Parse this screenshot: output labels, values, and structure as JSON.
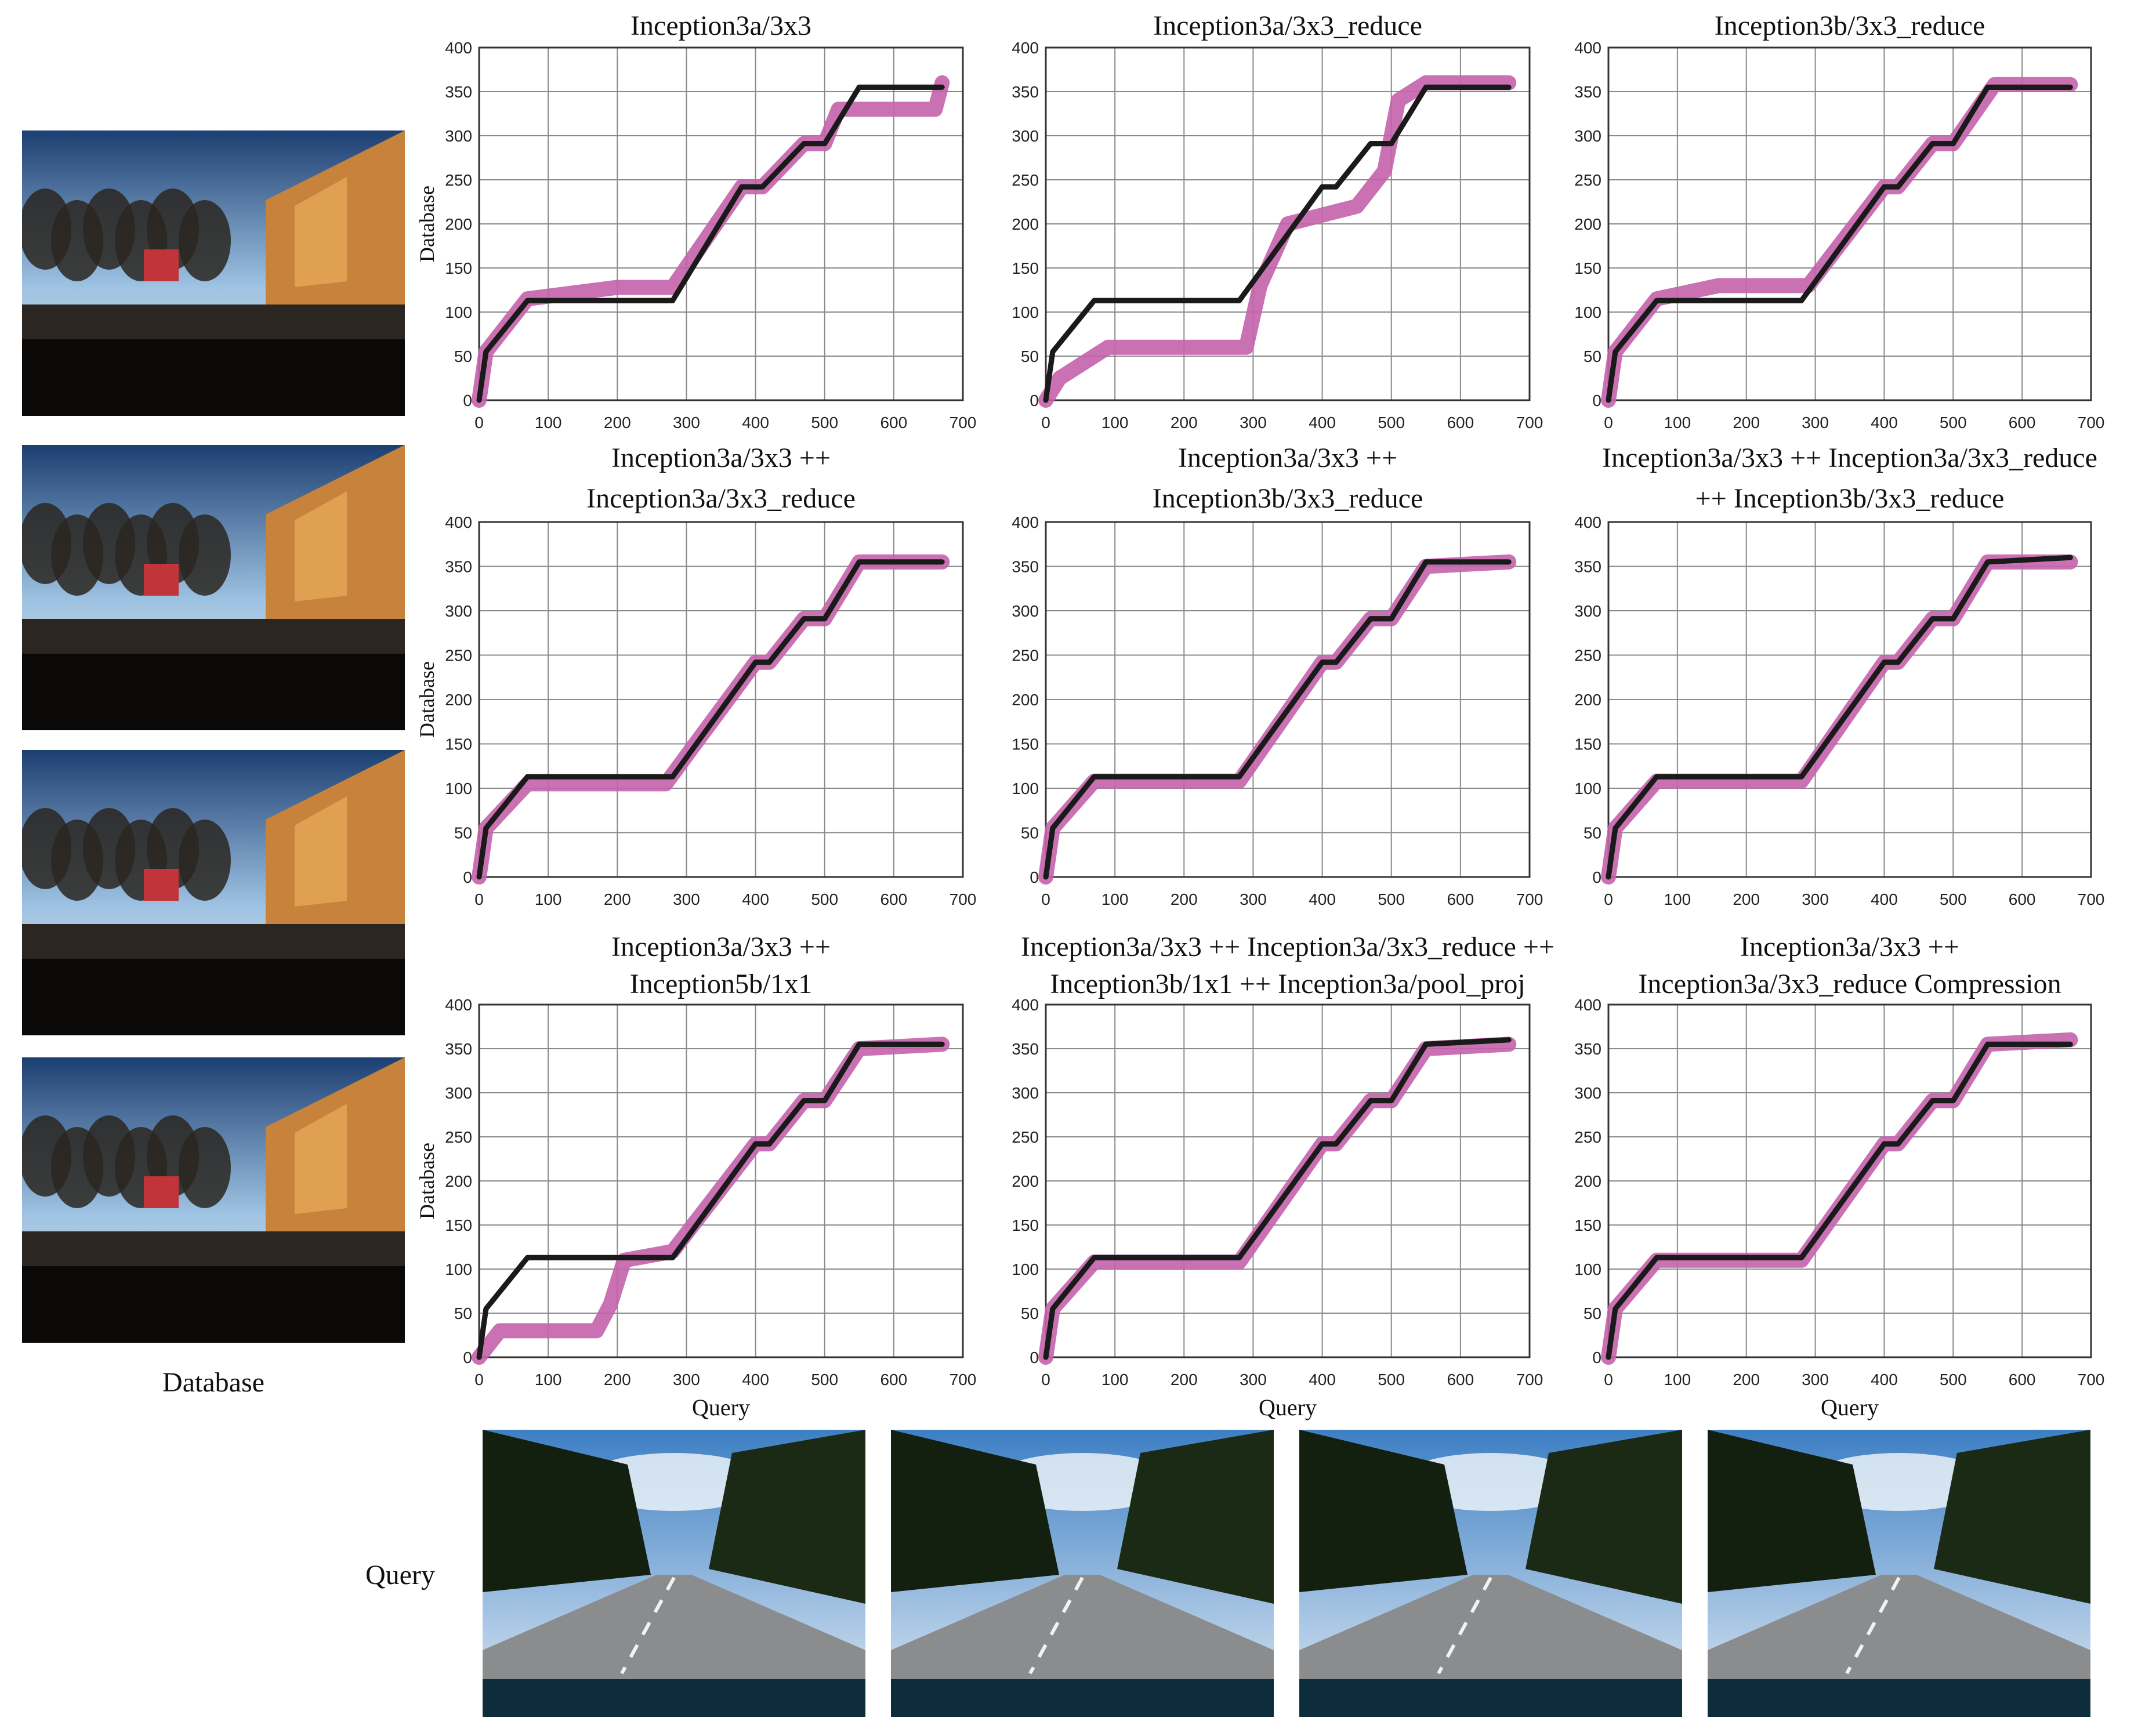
{
  "labels": {
    "database": "Database",
    "query": "Query"
  },
  "colors": {
    "ground_truth": "#1a1a1a",
    "match": "#c462ac",
    "grid": "#8a8a8a"
  },
  "database_images": [
    {
      "description_icon": "street-photo-icon"
    },
    {
      "description_icon": "street-photo-icon"
    },
    {
      "description_icon": "street-photo-icon"
    },
    {
      "description_icon": "street-photo-icon"
    }
  ],
  "query_images": [
    {
      "description_icon": "street-photo-icon"
    },
    {
      "description_icon": "street-photo-icon"
    },
    {
      "description_icon": "street-photo-icon"
    },
    {
      "description_icon": "street-photo-icon"
    }
  ],
  "chart_data": [
    {
      "type": "line",
      "title": "Inception3a/3x3",
      "xlabel": "",
      "ylabel": "Database",
      "xlim": [
        0,
        700
      ],
      "ylim": [
        0,
        400
      ],
      "xticks": [
        0,
        100,
        200,
        300,
        400,
        500,
        600,
        700
      ],
      "yticks": [
        0,
        50,
        100,
        150,
        200,
        250,
        300,
        350,
        400
      ],
      "grid": true,
      "series": [
        {
          "role": "ground_truth",
          "x": [
            0,
            10,
            70,
            280,
            380,
            410,
            470,
            500,
            550,
            670
          ],
          "y": [
            0,
            55,
            113,
            113,
            242,
            242,
            291,
            291,
            355,
            355
          ]
        },
        {
          "role": "match",
          "x": [
            0,
            10,
            70,
            200,
            280,
            380,
            410,
            470,
            500,
            520,
            660,
            670
          ],
          "y": [
            0,
            55,
            115,
            128,
            128,
            242,
            242,
            291,
            291,
            330,
            330,
            360
          ]
        }
      ]
    },
    {
      "type": "line",
      "title": "Inception3a/3x3_reduce",
      "xlabel": "",
      "ylabel": "",
      "xlim": [
        0,
        700
      ],
      "ylim": [
        0,
        400
      ],
      "xticks": [
        0,
        100,
        200,
        300,
        400,
        500,
        600,
        700
      ],
      "yticks": [
        0,
        50,
        100,
        150,
        200,
        250,
        300,
        350,
        400
      ],
      "grid": true,
      "series": [
        {
          "role": "ground_truth",
          "x": [
            0,
            10,
            70,
            280,
            400,
            420,
            470,
            500,
            550,
            670
          ],
          "y": [
            0,
            55,
            113,
            113,
            242,
            242,
            291,
            291,
            355,
            355
          ]
        },
        {
          "role": "match",
          "x": [
            0,
            20,
            90,
            290,
            310,
            350,
            450,
            490,
            510,
            550,
            670
          ],
          "y": [
            0,
            25,
            60,
            60,
            130,
            200,
            220,
            260,
            340,
            360,
            360
          ]
        }
      ]
    },
    {
      "type": "line",
      "title": "Inception3b/3x3_reduce",
      "xlabel": "",
      "ylabel": "",
      "xlim": [
        0,
        700
      ],
      "ylim": [
        0,
        400
      ],
      "xticks": [
        0,
        100,
        200,
        300,
        400,
        500,
        600,
        700
      ],
      "yticks": [
        0,
        50,
        100,
        150,
        200,
        250,
        300,
        350,
        400
      ],
      "grid": true,
      "series": [
        {
          "role": "ground_truth",
          "x": [
            0,
            10,
            70,
            280,
            400,
            420,
            470,
            500,
            550,
            670
          ],
          "y": [
            0,
            55,
            113,
            113,
            242,
            242,
            291,
            291,
            355,
            355
          ]
        },
        {
          "role": "match",
          "x": [
            0,
            10,
            70,
            160,
            290,
            400,
            420,
            470,
            500,
            560,
            670
          ],
          "y": [
            0,
            55,
            115,
            130,
            130,
            242,
            242,
            291,
            291,
            358,
            358
          ]
        }
      ]
    },
    {
      "type": "line",
      "title": "Inception3a/3x3 ++\nInception3a/3x3_reduce",
      "xlabel": "",
      "ylabel": "Database",
      "xlim": [
        0,
        700
      ],
      "ylim": [
        0,
        400
      ],
      "xticks": [
        0,
        100,
        200,
        300,
        400,
        500,
        600,
        700
      ],
      "yticks": [
        0,
        50,
        100,
        150,
        200,
        250,
        300,
        350,
        400
      ],
      "grid": true,
      "series": [
        {
          "role": "ground_truth",
          "x": [
            0,
            10,
            70,
            280,
            400,
            420,
            470,
            500,
            550,
            670
          ],
          "y": [
            0,
            55,
            113,
            113,
            242,
            242,
            291,
            291,
            355,
            355
          ]
        },
        {
          "role": "match",
          "x": [
            0,
            10,
            70,
            270,
            400,
            420,
            470,
            500,
            550,
            670
          ],
          "y": [
            0,
            55,
            105,
            105,
            242,
            242,
            291,
            291,
            355,
            355
          ]
        }
      ]
    },
    {
      "type": "line",
      "title": "Inception3a/3x3 ++\nInception3b/3x3_reduce",
      "xlabel": "",
      "ylabel": "",
      "xlim": [
        0,
        700
      ],
      "ylim": [
        0,
        400
      ],
      "xticks": [
        0,
        100,
        200,
        300,
        400,
        500,
        600,
        700
      ],
      "yticks": [
        0,
        50,
        100,
        150,
        200,
        250,
        300,
        350,
        400
      ],
      "grid": true,
      "series": [
        {
          "role": "ground_truth",
          "x": [
            0,
            10,
            70,
            280,
            400,
            420,
            470,
            500,
            550,
            670
          ],
          "y": [
            0,
            55,
            113,
            113,
            242,
            242,
            291,
            291,
            355,
            355
          ]
        },
        {
          "role": "match",
          "x": [
            0,
            10,
            70,
            280,
            400,
            420,
            470,
            500,
            550,
            670
          ],
          "y": [
            0,
            55,
            108,
            108,
            242,
            242,
            291,
            291,
            350,
            355
          ]
        }
      ]
    },
    {
      "type": "line",
      "title": "Inception3a/3x3 ++ Inception3a/3x3_reduce\n++ Inception3b/3x3_reduce",
      "xlabel": "",
      "ylabel": "",
      "xlim": [
        0,
        700
      ],
      "ylim": [
        0,
        400
      ],
      "xticks": [
        0,
        100,
        200,
        300,
        400,
        500,
        600,
        700
      ],
      "yticks": [
        0,
        50,
        100,
        150,
        200,
        250,
        300,
        350,
        400
      ],
      "grid": true,
      "series": [
        {
          "role": "ground_truth",
          "x": [
            0,
            10,
            70,
            280,
            400,
            420,
            470,
            500,
            550,
            670
          ],
          "y": [
            0,
            55,
            113,
            113,
            242,
            242,
            291,
            291,
            355,
            360
          ]
        },
        {
          "role": "match",
          "x": [
            0,
            10,
            70,
            280,
            400,
            420,
            470,
            500,
            550,
            670
          ],
          "y": [
            0,
            55,
            108,
            108,
            242,
            242,
            291,
            291,
            355,
            355
          ]
        }
      ]
    },
    {
      "type": "line",
      "title": "Inception3a/3x3 ++\nInception5b/1x1",
      "xlabel": "Query",
      "ylabel": "Database",
      "xlim": [
        0,
        700
      ],
      "ylim": [
        0,
        400
      ],
      "xticks": [
        0,
        100,
        200,
        300,
        400,
        500,
        600,
        700
      ],
      "yticks": [
        0,
        50,
        100,
        150,
        200,
        250,
        300,
        350,
        400
      ],
      "grid": true,
      "series": [
        {
          "role": "ground_truth",
          "x": [
            0,
            10,
            70,
            280,
            400,
            420,
            470,
            500,
            550,
            670
          ],
          "y": [
            0,
            55,
            113,
            113,
            242,
            242,
            291,
            291,
            355,
            355
          ]
        },
        {
          "role": "match",
          "x": [
            0,
            30,
            170,
            190,
            210,
            280,
            400,
            420,
            470,
            500,
            550,
            670
          ],
          "y": [
            0,
            30,
            30,
            60,
            110,
            120,
            242,
            242,
            291,
            291,
            350,
            355
          ]
        }
      ]
    },
    {
      "type": "line",
      "title": "Inception3a/3x3 ++ Inception3a/3x3_reduce ++\nInception3b/1x1 ++ Inception3a/pool_proj",
      "xlabel": "Query",
      "ylabel": "",
      "xlim": [
        0,
        700
      ],
      "ylim": [
        0,
        400
      ],
      "xticks": [
        0,
        100,
        200,
        300,
        400,
        500,
        600,
        700
      ],
      "yticks": [
        0,
        50,
        100,
        150,
        200,
        250,
        300,
        350,
        400
      ],
      "grid": true,
      "series": [
        {
          "role": "ground_truth",
          "x": [
            0,
            10,
            70,
            280,
            400,
            420,
            470,
            500,
            550,
            670
          ],
          "y": [
            0,
            55,
            113,
            113,
            242,
            242,
            291,
            291,
            355,
            360
          ]
        },
        {
          "role": "match",
          "x": [
            0,
            10,
            70,
            280,
            400,
            420,
            470,
            500,
            550,
            670
          ],
          "y": [
            0,
            55,
            108,
            108,
            242,
            242,
            291,
            291,
            350,
            355
          ]
        }
      ]
    },
    {
      "type": "line",
      "title": "Inception3a/3x3 ++\nInception3a/3x3_reduce Compression",
      "xlabel": "Query",
      "ylabel": "",
      "xlim": [
        0,
        700
      ],
      "ylim": [
        0,
        400
      ],
      "xticks": [
        0,
        100,
        200,
        300,
        400,
        500,
        600,
        700
      ],
      "yticks": [
        0,
        50,
        100,
        150,
        200,
        250,
        300,
        350,
        400
      ],
      "grid": true,
      "series": [
        {
          "role": "ground_truth",
          "x": [
            0,
            10,
            70,
            280,
            400,
            420,
            470,
            500,
            550,
            670
          ],
          "y": [
            0,
            55,
            113,
            113,
            242,
            242,
            291,
            291,
            355,
            355
          ]
        },
        {
          "role": "match",
          "x": [
            0,
            10,
            70,
            280,
            400,
            420,
            470,
            500,
            550,
            670
          ],
          "y": [
            0,
            55,
            110,
            110,
            242,
            242,
            291,
            291,
            355,
            360
          ]
        }
      ]
    }
  ]
}
